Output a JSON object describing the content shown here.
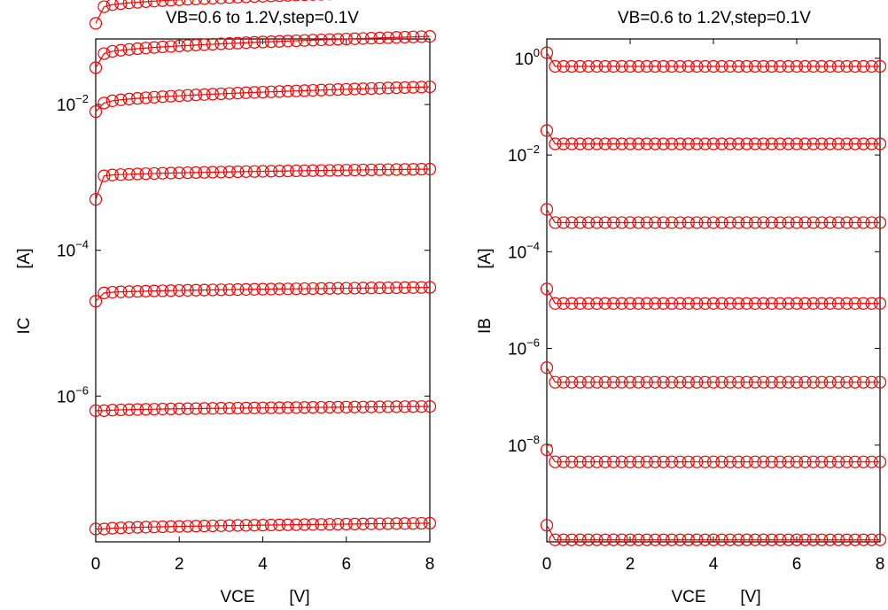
{
  "chart_data": [
    {
      "type": "scatter",
      "title": "VB=0.6 to 1.2V,step=0.1V",
      "xlabel": "VCE",
      "xunit": "[V]",
      "ylabel": "IC",
      "yunit": "[A]",
      "xlim": [
        0,
        8
      ],
      "ylim_log10": [
        -8.0,
        -1.1
      ],
      "yscale": "log",
      "xticks": [
        0,
        2,
        4,
        6,
        8
      ],
      "yticks": [
        {
          "base": "10",
          "exp": "−2",
          "value": 0.01
        },
        {
          "base": "10",
          "exp": "−4",
          "value": 0.0001
        },
        {
          "base": "10",
          "exp": "−6",
          "value": 1e-06
        }
      ],
      "marker": "circle",
      "marker_color": "#ff0000",
      "x": [
        0,
        0.2,
        0.4,
        0.6,
        0.8,
        1.0,
        1.2,
        1.4,
        1.6,
        1.8,
        2.0,
        2.2,
        2.4,
        2.6,
        2.8,
        3.0,
        3.2,
        3.4,
        3.6,
        3.8,
        4.0,
        4.2,
        4.4,
        4.6,
        4.8,
        5.0,
        5.2,
        5.4,
        5.6,
        5.8,
        6.0,
        6.2,
        6.4,
        6.6,
        6.8,
        7.0,
        7.2,
        7.4,
        7.6,
        7.8,
        8.0
      ],
      "series": [
        {
          "vb": 0.6,
          "y_start": 1.5e-08,
          "y_end": 1.8e-08,
          "first_point": 1.5e-08
        },
        {
          "vb": 0.7,
          "y_start": 6.3e-07,
          "y_end": 7.2e-07,
          "first_point": 6.3e-07
        },
        {
          "vb": 0.8,
          "y_start": 2.6e-05,
          "y_end": 3.1e-05,
          "first_point": 2e-05
        },
        {
          "vb": 0.9,
          "y_start": 0.00105,
          "y_end": 0.0013,
          "first_point": 0.0005
        },
        {
          "vb": 1.0,
          "y_start": 0.0105,
          "y_end": 0.0175,
          "first_point": 0.008
        },
        {
          "vb": 1.1,
          "y_start": 0.05,
          "y_end": 0.086,
          "first_point": 0.032
        },
        {
          "vb": 1.2,
          "y_start": 0.22,
          "y_end": 0.36,
          "first_point": 0.13
        }
      ]
    },
    {
      "type": "scatter",
      "title": "VB=0.6 to 1.2V,step=0.1V",
      "xlabel": "VCE",
      "xunit": "[V]",
      "ylabel": "IB",
      "yunit": "[A]",
      "xlim": [
        0,
        8
      ],
      "ylim_log10": [
        -10.0,
        0.4
      ],
      "yscale": "log",
      "xticks": [
        0,
        2,
        4,
        6,
        8
      ],
      "yticks": [
        {
          "base": "10",
          "exp": "0",
          "value": 1
        },
        {
          "base": "10",
          "exp": "−2",
          "value": 0.01
        },
        {
          "base": "10",
          "exp": "−4",
          "value": 0.0001
        },
        {
          "base": "10",
          "exp": "−6",
          "value": 1e-06
        },
        {
          "base": "10",
          "exp": "−8",
          "value": 1e-08
        }
      ],
      "marker": "circle",
      "marker_color": "#ff0000",
      "x": [
        0,
        0.2,
        0.4,
        0.6,
        0.8,
        1.0,
        1.2,
        1.4,
        1.6,
        1.8,
        2.0,
        2.2,
        2.4,
        2.6,
        2.8,
        3.0,
        3.2,
        3.4,
        3.6,
        3.8,
        4.0,
        4.2,
        4.4,
        4.6,
        4.8,
        5.0,
        5.2,
        5.4,
        5.6,
        5.8,
        6.0,
        6.2,
        6.4,
        6.6,
        6.8,
        7.0,
        7.2,
        7.4,
        7.6,
        7.8,
        8.0
      ],
      "series": [
        {
          "vb": 0.6,
          "y_start": 1.1e-10,
          "y_end": 1.1e-10,
          "first_point": 2.2e-10
        },
        {
          "vb": 0.7,
          "y_start": 4.5e-09,
          "y_end": 4.5e-09,
          "first_point": 8e-09
        },
        {
          "vb": 0.8,
          "y_start": 2e-07,
          "y_end": 2e-07,
          "first_point": 4e-07
        },
        {
          "vb": 0.9,
          "y_start": 8.5e-06,
          "y_end": 8.5e-06,
          "first_point": 1.7e-05
        },
        {
          "vb": 1.0,
          "y_start": 0.0004,
          "y_end": 0.0004,
          "first_point": 0.00075
        },
        {
          "vb": 1.1,
          "y_start": 0.017,
          "y_end": 0.017,
          "first_point": 0.032
        },
        {
          "vb": 1.2,
          "y_start": 0.68,
          "y_end": 0.68,
          "first_point": 1.3
        }
      ]
    }
  ]
}
